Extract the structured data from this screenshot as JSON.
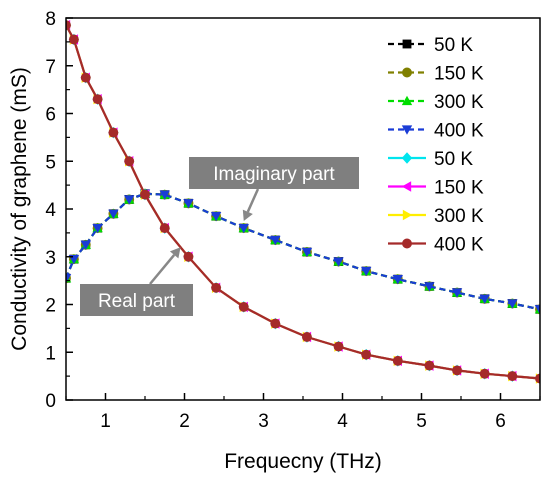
{
  "chart_data": {
    "type": "line",
    "xlabel": "Frequecny (THz)",
    "ylabel": "Conductivity of graphene (mS)",
    "xlim": [
      0.5,
      6.5
    ],
    "ylim": [
      0,
      8
    ],
    "xticks": [
      1,
      2,
      3,
      4,
      5,
      6
    ],
    "yticks": [
      0,
      1,
      2,
      3,
      4,
      5,
      6,
      7,
      8
    ],
    "grid": false,
    "legend_position": "top-right",
    "x": [
      0.5,
      0.6,
      0.75,
      0.9,
      1.1,
      1.3,
      1.5,
      1.75,
      2.05,
      2.4,
      2.75,
      3.15,
      3.55,
      3.95,
      4.3,
      4.7,
      5.1,
      5.45,
      5.8,
      6.15,
      6.5
    ],
    "series": [
      {
        "name": "50  K",
        "part": "imaginary",
        "color": "#000000",
        "line": "dashed",
        "marker": "square",
        "values": [
          2.55,
          2.95,
          3.25,
          3.6,
          3.9,
          4.2,
          4.32,
          4.3,
          4.12,
          3.85,
          3.6,
          3.35,
          3.1,
          2.9,
          2.7,
          2.53,
          2.38,
          2.25,
          2.12,
          2.02,
          1.9
        ]
      },
      {
        "name": "150 K",
        "part": "imaginary",
        "color": "#808000",
        "line": "dashed",
        "marker": "circle",
        "values": [
          2.55,
          2.95,
          3.25,
          3.6,
          3.9,
          4.2,
          4.32,
          4.3,
          4.12,
          3.85,
          3.6,
          3.35,
          3.1,
          2.9,
          2.7,
          2.53,
          2.38,
          2.25,
          2.12,
          2.02,
          1.9
        ]
      },
      {
        "name": "300 K",
        "part": "imaginary",
        "color": "#00dd00",
        "line": "dashed",
        "marker": "triangle-up",
        "values": [
          2.55,
          2.95,
          3.25,
          3.6,
          3.9,
          4.2,
          4.32,
          4.3,
          4.12,
          3.85,
          3.6,
          3.35,
          3.1,
          2.9,
          2.7,
          2.53,
          2.38,
          2.25,
          2.12,
          2.02,
          1.9
        ]
      },
      {
        "name": "400 K",
        "part": "imaginary",
        "color": "#1a3cd6",
        "line": "dashed",
        "marker": "triangle-down",
        "values": [
          2.55,
          2.95,
          3.25,
          3.6,
          3.9,
          4.2,
          4.32,
          4.3,
          4.12,
          3.85,
          3.6,
          3.35,
          3.1,
          2.9,
          2.7,
          2.53,
          2.38,
          2.25,
          2.12,
          2.02,
          1.9
        ]
      },
      {
        "name": "50  K",
        "part": "real",
        "color": "#00e5ee",
        "line": "solid",
        "marker": "diamond",
        "values": [
          7.85,
          7.55,
          6.75,
          6.3,
          5.6,
          5.0,
          4.3,
          3.6,
          3.0,
          2.35,
          1.95,
          1.6,
          1.32,
          1.12,
          0.95,
          0.82,
          0.72,
          0.62,
          0.55,
          0.5,
          0.45
        ]
      },
      {
        "name": "150 K",
        "part": "real",
        "color": "#ff00ff",
        "line": "solid",
        "marker": "triangle-left",
        "values": [
          7.85,
          7.55,
          6.75,
          6.3,
          5.6,
          5.0,
          4.3,
          3.6,
          3.0,
          2.35,
          1.95,
          1.6,
          1.32,
          1.12,
          0.95,
          0.82,
          0.72,
          0.62,
          0.55,
          0.5,
          0.45
        ]
      },
      {
        "name": "300 K",
        "part": "real",
        "color": "#ffee00",
        "line": "solid",
        "marker": "triangle-right",
        "values": [
          7.85,
          7.55,
          6.75,
          6.3,
          5.6,
          5.0,
          4.3,
          3.6,
          3.0,
          2.35,
          1.95,
          1.6,
          1.32,
          1.12,
          0.95,
          0.82,
          0.72,
          0.62,
          0.55,
          0.5,
          0.45
        ]
      },
      {
        "name": "400 K",
        "part": "real",
        "color": "#a52a2a",
        "line": "solid",
        "marker": "circle",
        "values": [
          7.85,
          7.55,
          6.75,
          6.3,
          5.6,
          5.0,
          4.3,
          3.6,
          3.0,
          2.35,
          1.95,
          1.6,
          1.32,
          1.12,
          0.95,
          0.82,
          0.72,
          0.62,
          0.55,
          0.5,
          0.45
        ]
      }
    ],
    "annotations": [
      {
        "text": "Imaginary part",
        "points_to": {
          "x": 2.75,
          "y": 3.75
        }
      },
      {
        "text": "Real part",
        "points_to": {
          "x": 1.95,
          "y": 3.2
        }
      }
    ]
  }
}
